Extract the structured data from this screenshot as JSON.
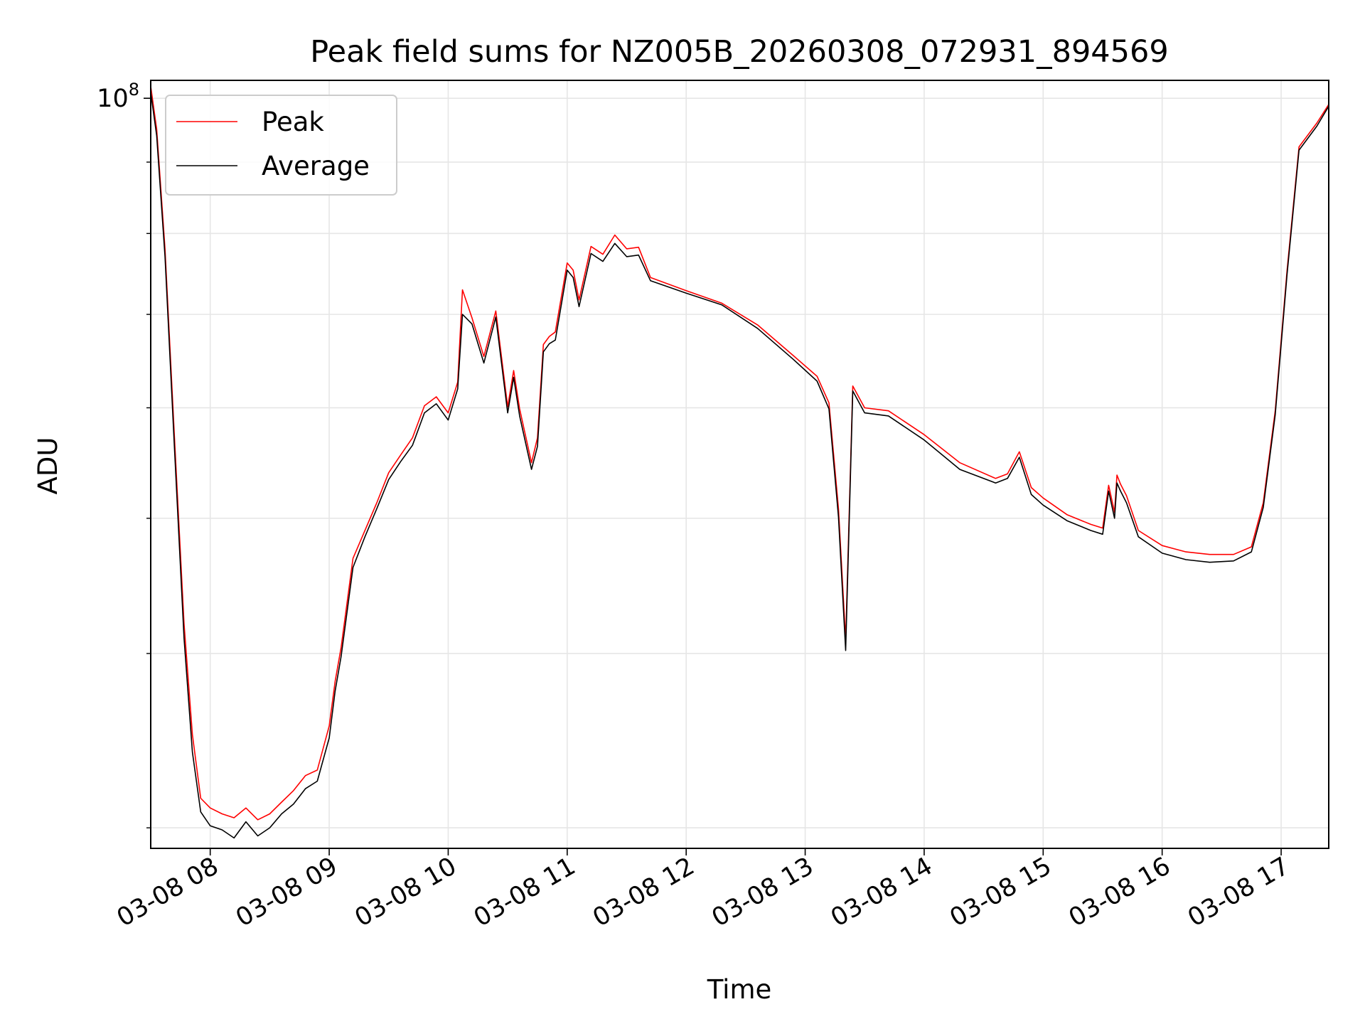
{
  "chart_data": {
    "type": "line",
    "title": "Peak field sums for NZ005B_20260308_072931_894569",
    "xlabel": "Time",
    "ylabel": "ADU",
    "yscale": "log",
    "xlim": [
      7.5,
      17.4
    ],
    "ylim": [
      29000000.0,
      103000000.0
    ],
    "x_ticks": [
      {
        "value": 8,
        "label": "03-08 08"
      },
      {
        "value": 9,
        "label": "03-08 09"
      },
      {
        "value": 10,
        "label": "03-08 10"
      },
      {
        "value": 11,
        "label": "03-08 11"
      },
      {
        "value": 12,
        "label": "03-08 12"
      },
      {
        "value": 13,
        "label": "03-08 13"
      },
      {
        "value": 14,
        "label": "03-08 14"
      },
      {
        "value": 15,
        "label": "03-08 15"
      },
      {
        "value": 16,
        "label": "03-08 16"
      },
      {
        "value": 17,
        "label": "03-08 17"
      }
    ],
    "y_major_tick": {
      "value": 100000000,
      "label_base": "10",
      "label_exp": "8"
    },
    "y_minor_ticks": [
      30000000,
      40000000,
      50000000,
      60000000,
      70000000,
      80000000,
      90000000
    ],
    "grid": true,
    "legend_position": "upper-left",
    "series": [
      {
        "name": "Peak",
        "color": "#ff0000",
        "x": [
          7.5,
          7.55,
          7.62,
          7.7,
          7.78,
          7.85,
          7.92,
          8.0,
          8.1,
          8.2,
          8.3,
          8.4,
          8.5,
          8.6,
          8.7,
          8.8,
          8.9,
          9.0,
          9.05,
          9.1,
          9.2,
          9.3,
          9.4,
          9.5,
          9.6,
          9.7,
          9.8,
          9.9,
          10.0,
          10.08,
          10.12,
          10.2,
          10.3,
          10.4,
          10.5,
          10.55,
          10.6,
          10.7,
          10.75,
          10.8,
          10.85,
          10.9,
          11.0,
          11.05,
          11.1,
          11.2,
          11.3,
          11.4,
          11.5,
          11.6,
          11.7,
          12.0,
          12.3,
          12.6,
          12.9,
          13.1,
          13.2,
          13.28,
          13.34,
          13.4,
          13.5,
          13.7,
          14.0,
          14.3,
          14.6,
          14.7,
          14.8,
          14.9,
          15.0,
          15.2,
          15.4,
          15.5,
          15.55,
          15.6,
          15.62,
          15.65,
          15.7,
          15.8,
          16.0,
          16.2,
          16.4,
          16.6,
          16.75,
          16.85,
          16.95,
          17.05,
          17.15,
          17.3,
          17.4
        ],
        "values": [
          102000000,
          95000000,
          78000000,
          57000000,
          42000000,
          35000000,
          31500000,
          31000000,
          30700000,
          30500000,
          31000000,
          30400000,
          30700000,
          31300000,
          31900000,
          32700000,
          33000000,
          35500000,
          38200000,
          40400000,
          46800000,
          49000000,
          51300000,
          53900000,
          55500000,
          57100000,
          60200000,
          61100000,
          59500000,
          62600000,
          72900000,
          69600000,
          65300000,
          70400000,
          60100000,
          63800000,
          59900000,
          54800000,
          57100000,
          66600000,
          67500000,
          68000000,
          76200000,
          75300000,
          71700000,
          78300000,
          77300000,
          79800000,
          78000000,
          78200000,
          74400000,
          72800000,
          71300000,
          68800000,
          65400000,
          63200000,
          60500000,
          50800000,
          40900000,
          62200000,
          60000000,
          59700000,
          57400000,
          54800000,
          53400000,
          53800000,
          55800000,
          52600000,
          51700000,
          50300000,
          49500000,
          49200000,
          52800000,
          50500000,
          53700000,
          52900000,
          51900000,
          49000000,
          47800000,
          47300000,
          47100000,
          47100000,
          47700000,
          51300000,
          59700000,
          75300000,
          92300000,
          96000000,
          99000000
        ]
      },
      {
        "name": "Average",
        "color": "#000000",
        "x": [
          7.5,
          7.55,
          7.62,
          7.7,
          7.78,
          7.85,
          7.92,
          8.0,
          8.1,
          8.2,
          8.3,
          8.4,
          8.5,
          8.6,
          8.7,
          8.8,
          8.9,
          9.0,
          9.05,
          9.1,
          9.2,
          9.3,
          9.4,
          9.5,
          9.6,
          9.7,
          9.8,
          9.9,
          10.0,
          10.08,
          10.12,
          10.2,
          10.3,
          10.4,
          10.5,
          10.55,
          10.6,
          10.7,
          10.75,
          10.8,
          10.85,
          10.9,
          11.0,
          11.05,
          11.1,
          11.2,
          11.3,
          11.4,
          11.5,
          11.6,
          11.7,
          12.0,
          12.3,
          12.6,
          12.9,
          13.1,
          13.2,
          13.28,
          13.34,
          13.4,
          13.5,
          13.7,
          14.0,
          14.3,
          14.6,
          14.7,
          14.8,
          14.9,
          15.0,
          15.2,
          15.4,
          15.5,
          15.55,
          15.6,
          15.62,
          15.65,
          15.7,
          15.8,
          16.0,
          16.2,
          16.4,
          16.6,
          16.75,
          16.85,
          16.95,
          17.05,
          17.15,
          17.3,
          17.4
        ],
        "values": [
          101000000,
          94000000,
          77000000,
          56000000,
          41000000,
          34000000,
          30800000,
          30100000,
          29900000,
          29500000,
          30300000,
          29600000,
          30000000,
          30700000,
          31200000,
          32000000,
          32400000,
          34800000,
          37600000,
          39800000,
          46100000,
          48500000,
          50800000,
          53300000,
          54900000,
          56400000,
          59500000,
          60400000,
          58800000,
          61900000,
          70000000,
          68900000,
          64600000,
          69700000,
          59500000,
          63100000,
          59200000,
          54200000,
          56300000,
          65800000,
          66700000,
          67100000,
          75300000,
          74400000,
          70900000,
          77400000,
          76400000,
          78700000,
          77000000,
          77200000,
          74000000,
          72500000,
          71100000,
          68400000,
          65000000,
          62700000,
          59900000,
          50100000,
          40200000,
          61700000,
          59500000,
          59200000,
          56900000,
          54200000,
          53000000,
          53400000,
          55300000,
          52000000,
          51100000,
          49800000,
          49000000,
          48700000,
          52300000,
          50000000,
          53000000,
          52300000,
          51300000,
          48500000,
          47200000,
          46700000,
          46500000,
          46600000,
          47300000,
          50900000,
          59300000,
          74800000,
          91800000,
          95500000,
          98700000
        ]
      }
    ]
  }
}
